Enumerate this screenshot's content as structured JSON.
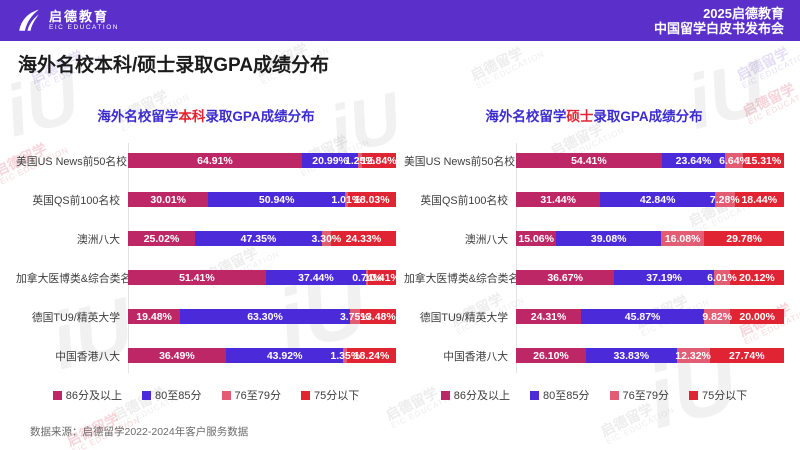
{
  "header": {
    "logo_title": "启德教育",
    "logo_subtitle": "EIC EDUCATION",
    "right_line1": "2025启德教育",
    "right_line2": "中国留学白皮书发布会"
  },
  "page_title": "海外名校本科/硕士录取GPA成绩分布",
  "colors": {
    "brand_purple": "#5B2FC9",
    "title_blue": "#3B2BD1",
    "highlight_red": "#E02433",
    "series_86_plus": "#BE2765",
    "series_80_85": "#4B2AD9",
    "series_76_79": "#E25C74",
    "series_75_below": "#E02433"
  },
  "watermark": {
    "line1": "启德留学",
    "line2": "EIC EDUCATION",
    "logo": "iU"
  },
  "chart_data": [
    {
      "type": "bar",
      "orientation": "horizontal-stacked",
      "title_parts": {
        "prefix": "海外名校留学",
        "highlight": "本科",
        "suffix": "录取GPA成绩分布"
      },
      "xlim": [
        0,
        100
      ],
      "value_suffix": "%",
      "grid": false,
      "legend_position": "bottom",
      "categories": [
        "美国US News前50名校",
        "英国QS前100名校",
        "澳洲八大",
        "加拿大医博类&综合类名校",
        "德国TU9/精英大学",
        "中国香港八大"
      ],
      "series": [
        {
          "name": "86分及以上",
          "color": "#BE2765",
          "values": [
            64.91,
            30.01,
            25.02,
            51.41,
            19.48,
            36.49
          ]
        },
        {
          "name": "80至85分",
          "color": "#4B2AD9",
          "values": [
            20.99,
            50.94,
            47.35,
            37.44,
            63.3,
            43.92
          ]
        },
        {
          "name": "76至79分",
          "color": "#E25C74",
          "values": [
            1.25,
            1.01,
            3.3,
            0.74,
            3.75,
            1.35
          ]
        },
        {
          "name": "75分以下",
          "color": "#E02433",
          "values": [
            12.84,
            18.03,
            24.33,
            10.41,
            13.48,
            18.24
          ]
        }
      ]
    },
    {
      "type": "bar",
      "orientation": "horizontal-stacked",
      "title_parts": {
        "prefix": "海外名校留学",
        "highlight": "硕士",
        "suffix": "录取GPA成绩分布"
      },
      "xlim": [
        0,
        100
      ],
      "value_suffix": "%",
      "grid": false,
      "legend_position": "bottom",
      "categories": [
        "美国US News前50名校",
        "英国QS前100名校",
        "澳洲八大",
        "加拿大医博类&综合类名校",
        "德国TU9/精英大学",
        "中国香港八大"
      ],
      "series": [
        {
          "name": "86分及以上",
          "color": "#BE2765",
          "values": [
            54.41,
            31.44,
            15.06,
            36.67,
            24.31,
            26.1
          ]
        },
        {
          "name": "80至85分",
          "color": "#4B2AD9",
          "values": [
            23.64,
            42.84,
            39.08,
            37.19,
            45.87,
            33.83
          ]
        },
        {
          "name": "76至79分",
          "color": "#E25C74",
          "values": [
            6.64,
            7.28,
            16.08,
            6.01,
            9.82,
            12.32
          ]
        },
        {
          "name": "75分以下",
          "color": "#E02433",
          "values": [
            15.31,
            18.44,
            29.78,
            20.12,
            20.0,
            27.74
          ]
        }
      ]
    }
  ],
  "footer": {
    "source": "数据来源：启德留学2022-2024年客户服务数据"
  }
}
